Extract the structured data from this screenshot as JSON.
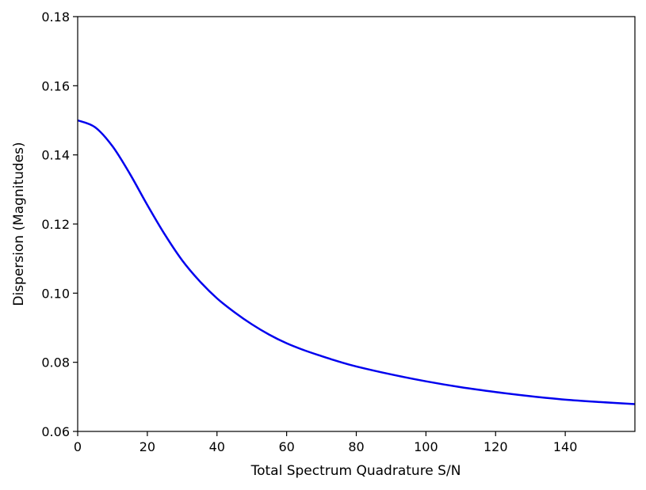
{
  "chart_data": {
    "type": "line",
    "title": "",
    "xlabel": "Total Spectrum Quadrature S/N",
    "ylabel": "Dispersion (Magnitudes)",
    "xlim": [
      0,
      160
    ],
    "ylim": [
      0.06,
      0.18
    ],
    "xticks": [
      0,
      20,
      40,
      60,
      80,
      100,
      120,
      140
    ],
    "xtick_labels": [
      "0",
      "20",
      "40",
      "60",
      "80",
      "100",
      "120",
      "140"
    ],
    "yticks": [
      0.06,
      0.08,
      0.1,
      0.12,
      0.14,
      0.16,
      0.18
    ],
    "ytick_labels": [
      "0.06",
      "0.08",
      "0.10",
      "0.12",
      "0.14",
      "0.16",
      "0.18"
    ],
    "grid": false,
    "legend": false,
    "series": [
      {
        "color": "#0000ee",
        "x": [
          0,
          5,
          10,
          15,
          20,
          25,
          30,
          35,
          40,
          45,
          50,
          55,
          60,
          65,
          70,
          75,
          80,
          90,
          100,
          110,
          120,
          130,
          140,
          150,
          160
        ],
        "y": [
          0.15,
          0.148,
          0.1425,
          0.1345,
          0.1255,
          0.117,
          0.1095,
          0.1035,
          0.0985,
          0.0945,
          0.091,
          0.088,
          0.0855,
          0.0835,
          0.0818,
          0.0802,
          0.0788,
          0.0765,
          0.0745,
          0.0728,
          0.0714,
          0.0702,
          0.0692,
          0.0685,
          0.0679
        ]
      }
    ]
  }
}
